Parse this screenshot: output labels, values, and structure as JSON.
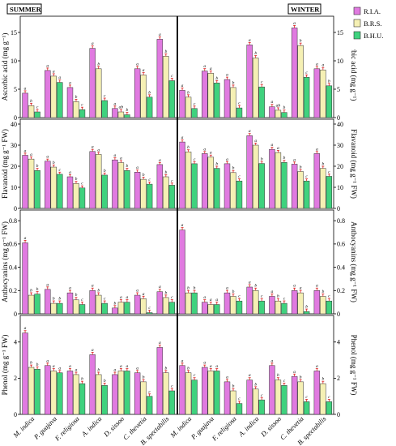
{
  "panel_titles": {
    "left": "SUMMER",
    "right": "WINTER"
  },
  "legend": [
    {
      "name": "R.I.A.",
      "color": "#e07ae0"
    },
    {
      "name": "B.R.S.",
      "color": "#f5f0b4"
    },
    {
      "name": "B.H.U.",
      "color": "#3fd27e"
    }
  ],
  "chart_data": {
    "type": "bar",
    "categories": [
      "M. indica",
      "P. guajava",
      "F. religiosa",
      "A. indica",
      "D. sissoo",
      "C. thevetia",
      "B. spectabilis"
    ],
    "series_names": [
      "R.I.A.",
      "B.R.S.",
      "B.H.U."
    ],
    "rows": [
      {
        "ylabel_left": "Ascorbic acid (mg g⁻¹)",
        "ylabel_right": "Ascorbic acid (mg g⁻¹)",
        "ylim": [
          0,
          17
        ],
        "yticks": [
          0,
          5,
          10,
          15
        ],
        "summer": {
          "values": [
            [
              4.3,
              2.1,
              1.0
            ],
            [
              8.3,
              7.3,
              6.2
            ],
            [
              5.3,
              2.8,
              1.4
            ],
            [
              12.2,
              8.6,
              3.0
            ],
            [
              1.6,
              1.0,
              0.5
            ],
            [
              8.6,
              7.5,
              3.6
            ],
            [
              13.8,
              10.8,
              6.5
            ]
          ],
          "labels": [
            [
              "a",
              "b",
              "c"
            ],
            [
              "a",
              "a",
              "a"
            ],
            [
              "a",
              "b",
              "c"
            ],
            [
              "a",
              "b",
              "c"
            ],
            [
              "a",
              "ab",
              "b"
            ],
            [
              "a",
              "a",
              "b"
            ],
            [
              "a",
              "b",
              "c"
            ]
          ]
        },
        "winter": {
          "values": [
            [
              4.8,
              3.6,
              1.6
            ],
            [
              8.2,
              7.8,
              6.1
            ],
            [
              6.7,
              5.3,
              1.7
            ],
            [
              12.8,
              10.5,
              5.4
            ],
            [
              1.9,
              1.3,
              0.9
            ],
            [
              15.8,
              12.7,
              7.1
            ],
            [
              8.6,
              8.4,
              5.6
            ]
          ],
          "labels": [
            [
              "a",
              "b",
              "c"
            ],
            [
              "a",
              "a",
              "b"
            ],
            [
              "a",
              "b",
              "c"
            ],
            [
              "a",
              "b",
              "c"
            ],
            [
              "a",
              "ab",
              "b"
            ],
            [
              "a",
              "b",
              "c"
            ],
            [
              "a",
              "a",
              "b"
            ]
          ]
        }
      },
      {
        "ylabel_left": "Flavanoid (mg g⁻¹ FW)",
        "ylabel_right": "Flavanoid (mg g⁻¹ FW)",
        "ylim": [
          0,
          40
        ],
        "yticks": [
          0,
          10,
          20,
          30,
          40
        ],
        "summer": {
          "values": [
            [
              25.2,
              23.4,
              18.0
            ],
            [
              22.4,
              19.6,
              16.2
            ],
            [
              15.0,
              11.8,
              9.7
            ],
            [
              27.0,
              25.6,
              15.8
            ],
            [
              23.0,
              21.7,
              18.0
            ],
            [
              17.2,
              13.8,
              11.5
            ],
            [
              20.8,
              15.0,
              11.0
            ]
          ],
          "labels": [
            [
              "a",
              "a",
              "b"
            ],
            [
              "a",
              "b",
              "c"
            ],
            [
              "a",
              "b",
              "c"
            ],
            [
              "a",
              "a",
              "b"
            ],
            [
              "a",
              "a",
              "b"
            ],
            [
              "a",
              "b",
              "c"
            ],
            [
              "a",
              "b",
              "c"
            ]
          ]
        },
        "winter": {
          "values": [
            [
              31.5,
              26.8,
              21.2
            ],
            [
              26.0,
              24.3,
              19.0
            ],
            [
              21.2,
              17.0,
              13.0
            ],
            [
              34.5,
              30.0,
              21.3
            ],
            [
              28.0,
              26.5,
              21.8
            ],
            [
              21.0,
              17.5,
              13.0
            ],
            [
              26.0,
              19.0,
              15.2
            ]
          ],
          "labels": [
            [
              "a",
              "b",
              "c"
            ],
            [
              "a",
              "a",
              "b"
            ],
            [
              "a",
              "b",
              "c"
            ],
            [
              "a",
              "a",
              "b"
            ],
            [
              "a",
              "a",
              "b"
            ],
            [
              "a",
              "b",
              "c"
            ],
            [
              "a",
              "b",
              "c"
            ]
          ]
        }
      },
      {
        "ylabel_left": "Anthocyanins (mg g⁻¹ FW)",
        "ylabel_right": "Anthocyanins (mg g⁻¹ FW)",
        "ylim": [
          0,
          0.85
        ],
        "yticks": [
          0.0,
          0.2,
          0.4,
          0.6,
          0.8
        ],
        "summer": {
          "values": [
            [
              0.61,
              0.16,
              0.17
            ],
            [
              0.21,
              0.09,
              0.09
            ],
            [
              0.18,
              0.12,
              0.08
            ],
            [
              0.2,
              0.16,
              0.09
            ],
            [
              0.05,
              0.1,
              0.1
            ],
            [
              0.16,
              0.13,
              0.01
            ],
            [
              0.19,
              0.14,
              0.1
            ]
          ],
          "labels": [
            [
              "a",
              "b",
              "b"
            ],
            [
              "a",
              "b",
              "b"
            ],
            [
              "a",
              "b",
              "c"
            ],
            [
              "a",
              "b",
              "c"
            ],
            [
              "b",
              "a",
              "a"
            ],
            [
              "a",
              "a",
              "c"
            ],
            [
              "a",
              "b",
              "c"
            ]
          ]
        },
        "winter": {
          "values": [
            [
              0.72,
              0.18,
              0.18
            ],
            [
              0.1,
              0.08,
              0.08
            ],
            [
              0.18,
              0.15,
              0.11
            ],
            [
              0.23,
              0.2,
              0.11
            ],
            [
              0.15,
              0.11,
              0.09
            ],
            [
              0.2,
              0.18,
              0.02
            ],
            [
              0.2,
              0.15,
              0.11
            ]
          ],
          "labels": [
            [
              "a",
              "b",
              "b"
            ],
            [
              "a",
              "a",
              "a"
            ],
            [
              "a",
              "b",
              "c"
            ],
            [
              "a",
              "b",
              "c"
            ],
            [
              "a",
              "b",
              "c"
            ],
            [
              "a",
              "a",
              "b"
            ],
            [
              "a",
              "b",
              "c"
            ]
          ]
        }
      },
      {
        "ylabel_left": "Phenol (mg g⁻¹ FW)",
        "ylabel_right": "Phenol (mg g⁻¹ FW)",
        "ylim": [
          0,
          5.2
        ],
        "yticks": [
          0,
          2,
          4
        ],
        "summer": {
          "values": [
            [
              4.5,
              2.6,
              2.5
            ],
            [
              2.7,
              2.4,
              2.3
            ],
            [
              2.4,
              2.2,
              1.7
            ],
            [
              3.3,
              2.2,
              1.6
            ],
            [
              2.2,
              2.4,
              2.4
            ],
            [
              2.3,
              1.8,
              1.0
            ],
            [
              3.7,
              2.3,
              1.3
            ]
          ],
          "labels": [
            [
              "a",
              "b",
              "b"
            ],
            [
              "a",
              "a",
              "a"
            ],
            [
              "a",
              "a",
              "b"
            ],
            [
              "a",
              "b",
              "b"
            ],
            [
              "a",
              "a",
              "a"
            ],
            [
              "a",
              "b",
              "c"
            ],
            [
              "a",
              "b",
              "c"
            ]
          ]
        },
        "winter": {
          "values": [
            [
              2.7,
              2.3,
              1.9
            ],
            [
              2.6,
              2.4,
              2.4
            ],
            [
              1.8,
              1.3,
              0.6
            ],
            [
              1.9,
              1.4,
              0.8
            ],
            [
              2.7,
              1.9,
              1.6
            ],
            [
              2.1,
              1.8,
              0.7
            ],
            [
              2.4,
              1.7,
              0.7
            ]
          ],
          "labels": [
            [
              "a",
              "b",
              "c"
            ],
            [
              "a",
              "a",
              "a"
            ],
            [
              "a",
              "b",
              "c"
            ],
            [
              "a",
              "b",
              "c"
            ],
            [
              "a",
              "b",
              "c"
            ],
            [
              "a",
              "b",
              "c"
            ],
            [
              "a",
              "b",
              "c"
            ]
          ]
        }
      }
    ]
  }
}
